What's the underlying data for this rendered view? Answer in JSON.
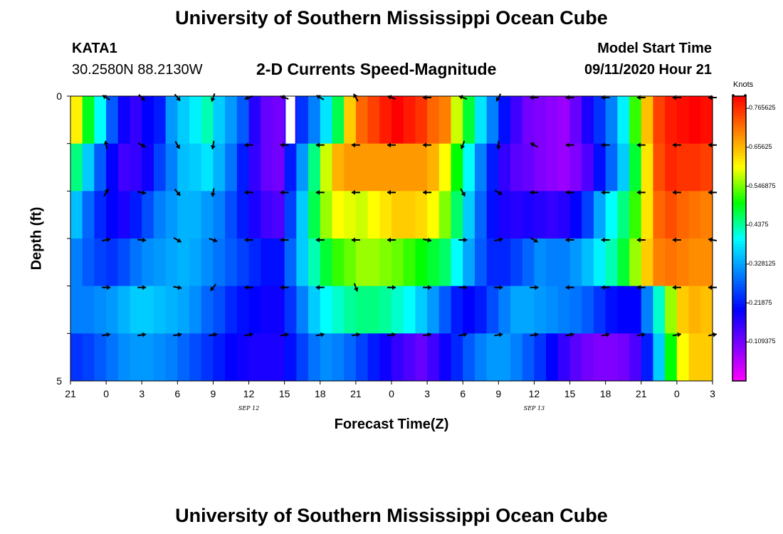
{
  "page": {
    "title": "University of Southern Mississippi Ocean Cube",
    "footer_title": "University of Southern Mississippi Ocean Cube",
    "station_id": "KATA1",
    "station_coords": "30.2580N 88.2130W",
    "subtitle": "2-D Currents Speed-Magnitude",
    "model_start_label": "Model Start Time",
    "model_start_value": "09/11/2020 Hour 21"
  },
  "colors": {
    "colormap": [
      "#ff00ff",
      "#8000ff",
      "#0000ff",
      "#0080ff",
      "#00ffff",
      "#00ff00",
      "#ffff00",
      "#ff8000",
      "#ff0000"
    ]
  },
  "chart_data": {
    "type": "heatmap",
    "title": "2-D Currents Speed-Magnitude",
    "xlabel": "Forecast Time(Z)",
    "ylabel": "Depth (ft)",
    "x_tick_labels": [
      "21",
      "0",
      "3",
      "6",
      "9",
      "12",
      "15",
      "18",
      "21",
      "0",
      "3",
      "6",
      "9",
      "12",
      "15",
      "18",
      "21",
      "0",
      "3"
    ],
    "date_labels": [
      {
        "text": "SEP 12",
        "at_tick": 5
      },
      {
        "text": "SEP 13",
        "at_tick": 13
      }
    ],
    "y_tick_labels": [
      "0",
      "5"
    ],
    "ylim": [
      0,
      5
    ],
    "x_hours": [
      0,
      54
    ],
    "colorbar": {
      "units": "Knots",
      "range": [
        0.0,
        0.8
      ],
      "tick_labels": [
        "0.765625",
        "0.65625",
        "0.546875",
        "0.4375",
        "0.328125",
        "0.21875",
        "0.109375"
      ],
      "tick_values": [
        0.765625,
        0.65625,
        0.546875,
        0.4375,
        0.328125,
        0.21875,
        0.109375
      ]
    },
    "grid": false,
    "legend": "colorbar-right",
    "layers": 6,
    "steps_per_layer": 54,
    "speed_knots": [
      [
        0.61,
        0.49,
        0.4,
        0.27,
        0.19,
        0.16,
        0.2,
        0.22,
        0.32,
        0.36,
        0.39,
        0.43,
        0.36,
        0.32,
        0.27,
        0.17,
        0.12,
        0.11,
        0.17,
        0.24,
        0.3,
        0.38,
        0.47,
        0.64,
        0.72,
        0.75,
        0.78,
        0.8,
        0.78,
        0.76,
        0.72,
        0.7,
        0.58,
        0.48,
        0.38,
        0.3,
        0.21,
        0.15,
        0.11,
        0.1,
        0.09,
        0.08,
        0.12,
        0.18,
        0.24,
        0.3,
        0.39,
        0.52,
        0.65,
        0.75,
        0.78,
        0.79,
        0.8,
        0.79
      ],
      [
        0.45,
        0.36,
        0.27,
        0.2,
        0.15,
        0.16,
        0.19,
        0.25,
        0.3,
        0.35,
        0.36,
        0.38,
        0.34,
        0.29,
        0.22,
        0.16,
        0.12,
        0.11,
        0.22,
        0.32,
        0.45,
        0.58,
        0.66,
        0.68,
        0.68,
        0.68,
        0.68,
        0.68,
        0.68,
        0.68,
        0.66,
        0.6,
        0.5,
        0.4,
        0.3,
        0.22,
        0.16,
        0.13,
        0.12,
        0.1,
        0.09,
        0.08,
        0.1,
        0.14,
        0.21,
        0.28,
        0.36,
        0.48,
        0.62,
        0.74,
        0.77,
        0.76,
        0.76,
        0.75
      ],
      [
        0.35,
        0.28,
        0.23,
        0.2,
        0.18,
        0.22,
        0.26,
        0.3,
        0.32,
        0.34,
        0.34,
        0.32,
        0.3,
        0.26,
        0.22,
        0.18,
        0.15,
        0.14,
        0.25,
        0.36,
        0.47,
        0.56,
        0.6,
        0.59,
        0.58,
        0.6,
        0.62,
        0.64,
        0.64,
        0.63,
        0.6,
        0.55,
        0.46,
        0.36,
        0.28,
        0.21,
        0.18,
        0.17,
        0.18,
        0.17,
        0.16,
        0.17,
        0.2,
        0.25,
        0.33,
        0.4,
        0.45,
        0.52,
        0.62,
        0.72,
        0.74,
        0.72,
        0.71,
        0.7
      ],
      [
        0.3,
        0.27,
        0.25,
        0.24,
        0.26,
        0.29,
        0.31,
        0.32,
        0.33,
        0.34,
        0.33,
        0.31,
        0.29,
        0.27,
        0.25,
        0.23,
        0.21,
        0.21,
        0.28,
        0.36,
        0.43,
        0.48,
        0.52,
        0.54,
        0.56,
        0.56,
        0.55,
        0.54,
        0.52,
        0.5,
        0.48,
        0.46,
        0.4,
        0.33,
        0.27,
        0.23,
        0.23,
        0.25,
        0.28,
        0.31,
        0.3,
        0.3,
        0.32,
        0.35,
        0.39,
        0.43,
        0.48,
        0.56,
        0.64,
        0.7,
        0.71,
        0.7,
        0.69,
        0.69
      ],
      [
        0.3,
        0.3,
        0.31,
        0.32,
        0.34,
        0.36,
        0.36,
        0.35,
        0.34,
        0.33,
        0.31,
        0.28,
        0.26,
        0.23,
        0.21,
        0.2,
        0.19,
        0.19,
        0.24,
        0.3,
        0.36,
        0.4,
        0.42,
        0.44,
        0.45,
        0.45,
        0.44,
        0.42,
        0.4,
        0.36,
        0.32,
        0.27,
        0.22,
        0.2,
        0.22,
        0.26,
        0.3,
        0.33,
        0.33,
        0.32,
        0.31,
        0.3,
        0.29,
        0.27,
        0.24,
        0.21,
        0.2,
        0.2,
        0.3,
        0.42,
        0.56,
        0.64,
        0.66,
        0.65
      ],
      [
        0.24,
        0.25,
        0.27,
        0.29,
        0.31,
        0.32,
        0.32,
        0.31,
        0.3,
        0.28,
        0.26,
        0.24,
        0.22,
        0.2,
        0.19,
        0.18,
        0.18,
        0.18,
        0.21,
        0.25,
        0.29,
        0.31,
        0.3,
        0.28,
        0.25,
        0.22,
        0.19,
        0.16,
        0.14,
        0.12,
        0.15,
        0.19,
        0.23,
        0.27,
        0.3,
        0.32,
        0.32,
        0.3,
        0.27,
        0.24,
        0.2,
        0.16,
        0.13,
        0.11,
        0.1,
        0.1,
        0.11,
        0.14,
        0.22,
        0.36,
        0.5,
        0.6,
        0.64,
        0.64
      ]
    ],
    "missing_cells": [
      {
        "layer": 0,
        "step": 18
      }
    ],
    "vector_hours": [
      3,
      6,
      9,
      12,
      15,
      18,
      21,
      24,
      27,
      30,
      33,
      36,
      39,
      42,
      45,
      48,
      51,
      54
    ],
    "direction_deg": [
      [
        300,
        135,
        140,
        200,
        250,
        290,
        300,
        330,
        290,
        270,
        290,
        210,
        270,
        270,
        270,
        270,
        270,
        270
      ],
      [
        350,
        120,
        150,
        190,
        270,
        270,
        270,
        270,
        270,
        270,
        200,
        180,
        300,
        270,
        270,
        270,
        270,
        270
      ],
      [
        30,
        100,
        140,
        190,
        270,
        270,
        270,
        270,
        270,
        270,
        150,
        120,
        270,
        270,
        270,
        270,
        270,
        270
      ],
      [
        80,
        95,
        120,
        110,
        270,
        270,
        270,
        270,
        270,
        100,
        90,
        80,
        120,
        270,
        270,
        270,
        270,
        280
      ],
      [
        90,
        90,
        100,
        220,
        270,
        270,
        270,
        160,
        90,
        90,
        90,
        90,
        90,
        270,
        270,
        270,
        270,
        270
      ],
      [
        80,
        80,
        80,
        80,
        80,
        80,
        80,
        80,
        80,
        80,
        80,
        80,
        80,
        80,
        80,
        80,
        80,
        80
      ]
    ]
  }
}
